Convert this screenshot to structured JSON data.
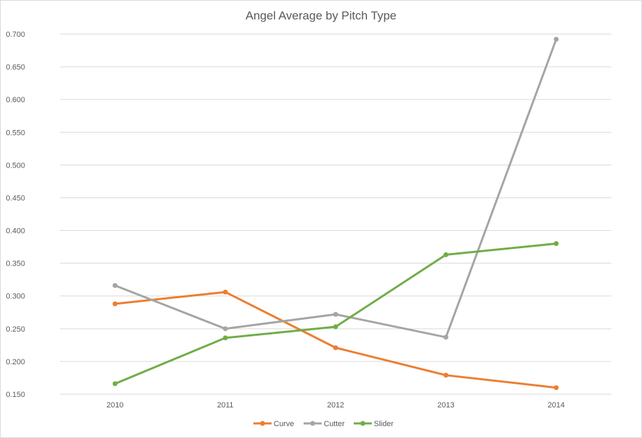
{
  "chart_data": {
    "type": "line",
    "title": "Angel Average by Pitch Type",
    "xlabel": "",
    "ylabel": "",
    "categories": [
      "2010",
      "2011",
      "2012",
      "2013",
      "2014"
    ],
    "y_ticks": [
      "0.150",
      "0.200",
      "0.250",
      "0.300",
      "0.350",
      "0.400",
      "0.450",
      "0.500",
      "0.550",
      "0.600",
      "0.650",
      "0.700"
    ],
    "ylim": [
      0.15,
      0.7
    ],
    "grid": true,
    "legend_position": "bottom",
    "series": [
      {
        "name": "Curve",
        "color": "#ed7d31",
        "values": [
          0.288,
          0.306,
          0.221,
          0.179,
          0.16
        ]
      },
      {
        "name": "Cutter",
        "color": "#a5a5a5",
        "values": [
          0.316,
          0.25,
          0.272,
          0.237,
          0.692
        ]
      },
      {
        "name": "Slider",
        "color": "#70ad47",
        "values": [
          0.166,
          0.236,
          0.253,
          0.363,
          0.38
        ]
      }
    ]
  }
}
